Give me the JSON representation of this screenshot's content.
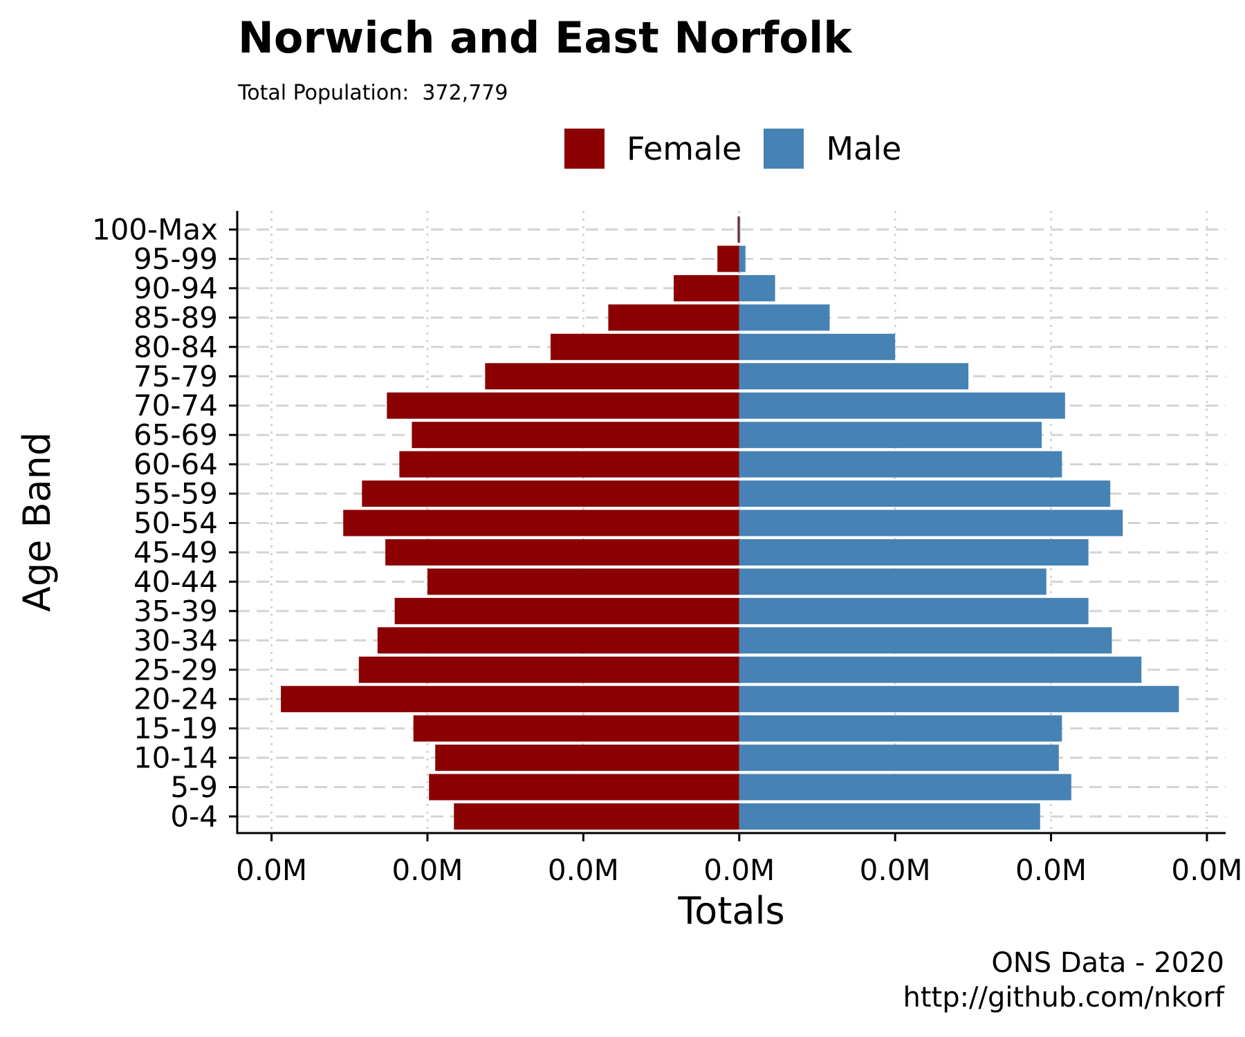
{
  "title": "Norwich and East Norfolk",
  "subtitle": "Total Population:  372,779",
  "caption": {
    "line1": "ONS Data - 2020",
    "line2": "http://github.com/nkorf"
  },
  "colors": {
    "female": "#8b0000",
    "male": "#4682b4",
    "grid": "#d3d3d3",
    "axis": "#000000"
  },
  "chart_data": {
    "type": "bar",
    "orientation": "horizontal",
    "layout": "population-pyramid",
    "xlabel": "Totals",
    "ylabel": "Age Band",
    "legend_position": "top",
    "grid": true,
    "categories": [
      "0-4",
      "5-9",
      "10-14",
      "15-19",
      "20-24",
      "25-29",
      "30-34",
      "35-39",
      "40-44",
      "45-49",
      "50-54",
      "55-59",
      "60-64",
      "65-69",
      "70-74",
      "75-79",
      "80-84",
      "85-89",
      "90-94",
      "95-99",
      "100-Max"
    ],
    "x_tick_labels": [
      "0.0M",
      "0.0M",
      "0.0M",
      "0.0M",
      "0.0M",
      "0.0M",
      "0.0M"
    ],
    "x_ticks": [
      -15000,
      -10000,
      -5000,
      0,
      5000,
      10000,
      15000
    ],
    "xlim": [
      -16100,
      15600
    ],
    "series": [
      {
        "name": "Female",
        "color": "#8b0000",
        "values": [
          -9150,
          -9950,
          -9750,
          -10450,
          -14700,
          -12200,
          -11600,
          -11050,
          -10000,
          -11350,
          -12700,
          -12100,
          -10900,
          -10500,
          -11300,
          -8150,
          -6050,
          -4200,
          -2100,
          -700,
          -50
        ]
      },
      {
        "name": "Male",
        "color": "#4682b4",
        "values": [
          9650,
          10650,
          10250,
          10350,
          14100,
          12900,
          11950,
          11200,
          9850,
          11200,
          12300,
          11900,
          10350,
          9700,
          10450,
          7350,
          5000,
          2900,
          1150,
          200,
          30
        ]
      }
    ]
  }
}
